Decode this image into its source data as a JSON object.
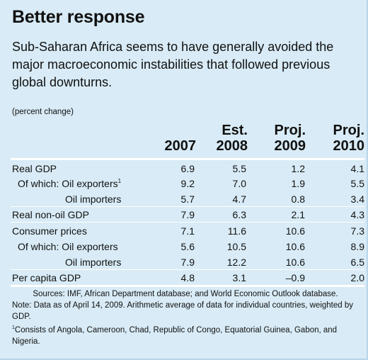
{
  "title": "Better response",
  "subtitle": "Sub-Saharan Africa seems to have generally avoided the major macroeconomic instabilities that followed previous global downturns.",
  "unit_note": "(percent change)",
  "columns": [
    {
      "line1": "",
      "line2": "2007"
    },
    {
      "line1": "Est.",
      "line2": "2008"
    },
    {
      "line1": "Proj.",
      "line2": "2009"
    },
    {
      "line1": "Proj.",
      "line2": "2010"
    }
  ],
  "rows": [
    {
      "label": "Real GDP",
      "values": [
        "6.9",
        "5.5",
        "1.2",
        "4.1"
      ]
    },
    {
      "label": "Of which: Oil exporters",
      "sup": "1",
      "values": [
        "9.2",
        "7.0",
        "1.9",
        "5.5"
      ]
    },
    {
      "label": "Oil importers",
      "values": [
        "5.7",
        "4.7",
        "0.8",
        "3.4"
      ]
    },
    {
      "label": "Real non-oil GDP",
      "values": [
        "7.9",
        "6.3",
        "2.1",
        "4.3"
      ]
    },
    {
      "label": "Consumer prices",
      "values": [
        "7.1",
        "11.6",
        "10.6",
        "7.3"
      ]
    },
    {
      "label": "Of which: Oil exporters",
      "values": [
        "5.6",
        "10.5",
        "10.6",
        "8.9"
      ]
    },
    {
      "label": "Oil importers",
      "values": [
        "7.9",
        "12.2",
        "10.6",
        "6.5"
      ]
    },
    {
      "label": "Per capita GDP",
      "values": [
        "4.8",
        "3.1",
        "–0.9",
        "2.0"
      ]
    }
  ],
  "footnotes": {
    "sources": "Sources: IMF, African Department database; and World Economic Outlook database.",
    "note": "Note: Data as of April 14, 2009. Arithmetic average of data for individual countries, weighted by GDP.",
    "fn1_marker": "1",
    "fn1": "Consists of Angola, Cameroon, Chad, Republic of Congo, Equatorial Guinea, Gabon, and Nigeria."
  }
}
